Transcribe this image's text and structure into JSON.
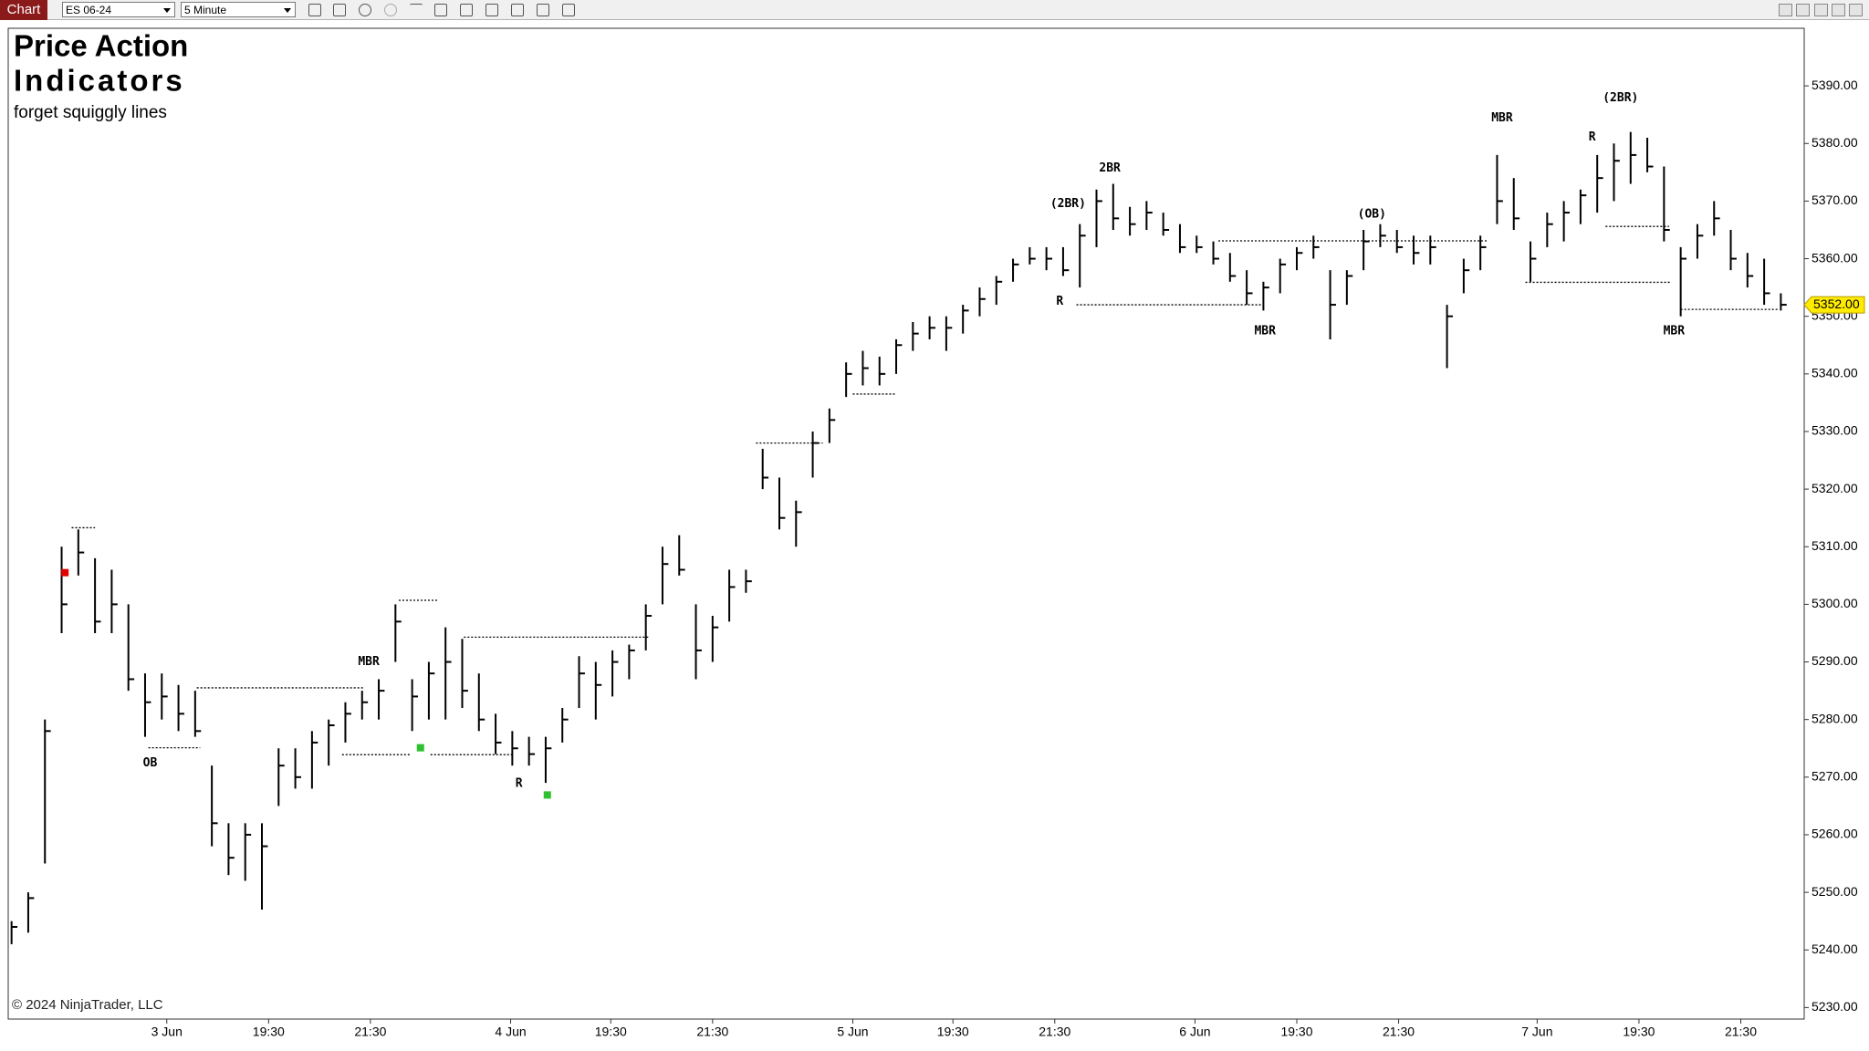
{
  "toolbar": {
    "tab": "Chart",
    "instrument": "ES 06-24",
    "interval": "5 Minute"
  },
  "chart_data": {
    "type": "hlc",
    "title_lines": [
      "Price Action",
      "Indicators"
    ],
    "subtitle": "forget squiggly lines",
    "watermark": "© 2024 NinjaTrader, LLC",
    "color": "#000000",
    "high": [
      5245,
      5250,
      5280,
      5310,
      5313,
      5308,
      5306,
      5300,
      5288,
      5288,
      5286,
      5285,
      5272,
      5262,
      5262,
      5262,
      5275,
      5275,
      5278,
      5280,
      5283,
      5285,
      5287,
      5300,
      5287,
      5290,
      5296,
      5294,
      5288,
      5281,
      5278,
      5277,
      5277,
      5282,
      5291,
      5290,
      5292,
      5293,
      5300,
      5310,
      5312,
      5300,
      5298,
      5306,
      5306,
      5327,
      5322,
      5318,
      5330,
      5334,
      5342,
      5344,
      5343,
      5346,
      5349,
      5350,
      5350,
      5352,
      5355,
      5357,
      5360,
      5362,
      5362,
      5362,
      5366,
      5372,
      5373,
      5369,
      5370,
      5368,
      5366,
      5364,
      5363,
      5361,
      5358,
      5356,
      5360,
      5362,
      5364,
      5358,
      5358,
      5365,
      5366,
      5365,
      5364,
      5364,
      5352,
      5360,
      5364,
      5378,
      5374,
      5363,
      5368,
      5370,
      5372,
      5378,
      5380,
      5382,
      5381,
      5376,
      5362,
      5366,
      5370,
      5365,
      5361,
      5360,
      5354
    ],
    "low": [
      5241,
      5243,
      5255,
      5295,
      5305,
      5295,
      5295,
      5285,
      5277,
      5280,
      5278,
      5277,
      5258,
      5253,
      5252,
      5247,
      5265,
      5268,
      5268,
      5272,
      5276,
      5280,
      5280,
      5290,
      5278,
      5280,
      5280,
      5282,
      5278,
      5274,
      5272,
      5272,
      5269,
      5276,
      5282,
      5280,
      5284,
      5287,
      5292,
      5300,
      5305,
      5287,
      5290,
      5297,
      5302,
      5320,
      5313,
      5310,
      5322,
      5328,
      5336,
      5338,
      5338,
      5340,
      5344,
      5346,
      5344,
      5347,
      5350,
      5352,
      5356,
      5359,
      5358,
      5357,
      5355,
      5362,
      5365,
      5364,
      5365,
      5364,
      5361,
      5361,
      5359,
      5356,
      5352,
      5351,
      5354,
      5358,
      5360,
      5346,
      5352,
      5358,
      5362,
      5361,
      5359,
      5359,
      5341,
      5354,
      5358,
      5366,
      5365,
      5356,
      5362,
      5363,
      5366,
      5368,
      5370,
      5373,
      5375,
      5363,
      5350,
      5360,
      5364,
      5358,
      5355,
      5352,
      5351
    ],
    "close": [
      5244,
      5249,
      5278,
      5300,
      5309,
      5297,
      5300,
      5287,
      5283,
      5284,
      5281,
      5278,
      5262,
      5256,
      5260,
      5258,
      5272,
      5270,
      5276,
      5279,
      5281,
      5283,
      5285,
      5297,
      5284,
      5288,
      5290,
      5285,
      5280,
      5276,
      5275,
      5274,
      5275,
      5280,
      5288,
      5286,
      5290,
      5292,
      5298,
      5307,
      5306,
      5292,
      5296,
      5303,
      5304,
      5322,
      5315,
      5316,
      5328,
      5332,
      5340,
      5341,
      5340,
      5345,
      5347,
      5348,
      5348,
      5351,
      5353,
      5356,
      5359,
      5360,
      5360,
      5358,
      5364,
      5370,
      5367,
      5366,
      5368,
      5365,
      5362,
      5362,
      5360,
      5357,
      5354,
      5355,
      5359,
      5361,
      5362,
      5352,
      5357,
      5363,
      5364,
      5362,
      5361,
      5362,
      5350,
      5358,
      5362,
      5370,
      5367,
      5360,
      5366,
      5368,
      5371,
      5374,
      5377,
      5378,
      5376,
      5365,
      5360,
      5364,
      5367,
      5360,
      5357,
      5354,
      5352
    ],
    "xlim": [
      -0.2,
      107.4
    ],
    "xticks": [
      {
        "value": 9.3,
        "label": "3 Jun"
      },
      {
        "value": 15.4,
        "label": "19:30"
      },
      {
        "value": 21.5,
        "label": "21:30"
      },
      {
        "value": 29.9,
        "label": "4 Jun"
      },
      {
        "value": 35.9,
        "label": "19:30"
      },
      {
        "value": 42,
        "label": "21:30"
      },
      {
        "value": 50.4,
        "label": "5 Jun"
      },
      {
        "value": 56.4,
        "label": "19:30"
      },
      {
        "value": 62.5,
        "label": "21:30"
      },
      {
        "value": 70.9,
        "label": "6 Jun"
      },
      {
        "value": 77,
        "label": "19:30"
      },
      {
        "value": 83.1,
        "label": "21:30"
      },
      {
        "value": 91.4,
        "label": "7 Jun"
      },
      {
        "value": 97.5,
        "label": "19:30"
      },
      {
        "value": 103.6,
        "label": "21:30"
      }
    ],
    "ylim": [
      5228,
      5400
    ],
    "yticks": [
      {
        "value": 5230,
        "label": "5230.00"
      },
      {
        "value": 5240,
        "label": "5240.00"
      },
      {
        "value": 5250,
        "label": "5250.00"
      },
      {
        "value": 5260,
        "label": "5260.00"
      },
      {
        "value": 5270,
        "label": "5270.00"
      },
      {
        "value": 5280,
        "label": "5280.00"
      },
      {
        "value": 5290,
        "label": "5290.00"
      },
      {
        "value": 5300,
        "label": "5300.00"
      },
      {
        "value": 5310,
        "label": "5310.00"
      },
      {
        "value": 5320,
        "label": "5320.00"
      },
      {
        "value": 5330,
        "label": "5330.00"
      },
      {
        "value": 5340,
        "label": "5340.00"
      },
      {
        "value": 5350,
        "label": "5350.00"
      },
      {
        "value": 5360,
        "label": "5360.00"
      },
      {
        "value": 5370,
        "label": "5370.00"
      },
      {
        "value": 5380,
        "label": "5380.00"
      },
      {
        "value": 5390,
        "label": "5390.00"
      }
    ],
    "last_price": {
      "value": 5352,
      "label": "5352.00"
    },
    "levels": [
      {
        "y": 5285.5,
        "x0": 11.1,
        "x1": 21.1
      },
      {
        "y": 5275.1,
        "x0": 8.2,
        "x1": 11.3
      },
      {
        "y": 5273.9,
        "x0": 19.8,
        "x1": 23.9
      },
      {
        "y": 5273.9,
        "x0": 25.1,
        "x1": 30.1
      },
      {
        "y": 5294.3,
        "x0": 27.1,
        "x1": 38.2
      },
      {
        "y": 5300.7,
        "x0": 23.2,
        "x1": 25.6
      },
      {
        "y": 5352,
        "x0": 63.8,
        "x1": 75
      },
      {
        "y": 5363.1,
        "x0": 72.3,
        "x1": 88.4
      },
      {
        "y": 5355.9,
        "x0": 90.7,
        "x1": 99.4
      },
      {
        "y": 5351.2,
        "x0": 100,
        "x1": 105.9
      },
      {
        "y": 5365.6,
        "x0": 95.5,
        "x1": 99.3
      },
      {
        "y": 5313.3,
        "x0": 3.6,
        "x1": 5
      },
      {
        "y": 5328,
        "x0": 44.6,
        "x1": 48.6
      },
      {
        "y": 5336.5,
        "x0": 50.4,
        "x1": 53
      }
    ],
    "annotations": [
      {
        "text": "MBR",
        "x": 21.4,
        "y": 5290
      },
      {
        "text": "OB",
        "x": 8.3,
        "y": 5272.4
      },
      {
        "text": "R",
        "x": 30.4,
        "y": 5268.9
      },
      {
        "text": "(2BR)",
        "x": 63.3,
        "y": 5369.5
      },
      {
        "text": "2BR",
        "x": 65.8,
        "y": 5375.7
      },
      {
        "text": "R",
        "x": 62.8,
        "y": 5352.6
      },
      {
        "text": "MBR",
        "x": 75.1,
        "y": 5347.4
      },
      {
        "text": "(OB)",
        "x": 81.5,
        "y": 5367.7
      },
      {
        "text": "MBR",
        "x": 89.3,
        "y": 5384.4
      },
      {
        "text": "R",
        "x": 94.7,
        "y": 5381.1
      },
      {
        "text": "(2BR)",
        "x": 96.4,
        "y": 5387.9
      },
      {
        "text": "MBR",
        "x": 99.6,
        "y": 5347.4
      }
    ],
    "markers": [
      {
        "x": 3.2,
        "y": 5305.5,
        "color": "#e00000"
      },
      {
        "x": 32.1,
        "y": 5266.9,
        "color": "#2ec02e"
      },
      {
        "x": 24.5,
        "y": 5275.1,
        "color": "#2ec02e"
      }
    ]
  }
}
